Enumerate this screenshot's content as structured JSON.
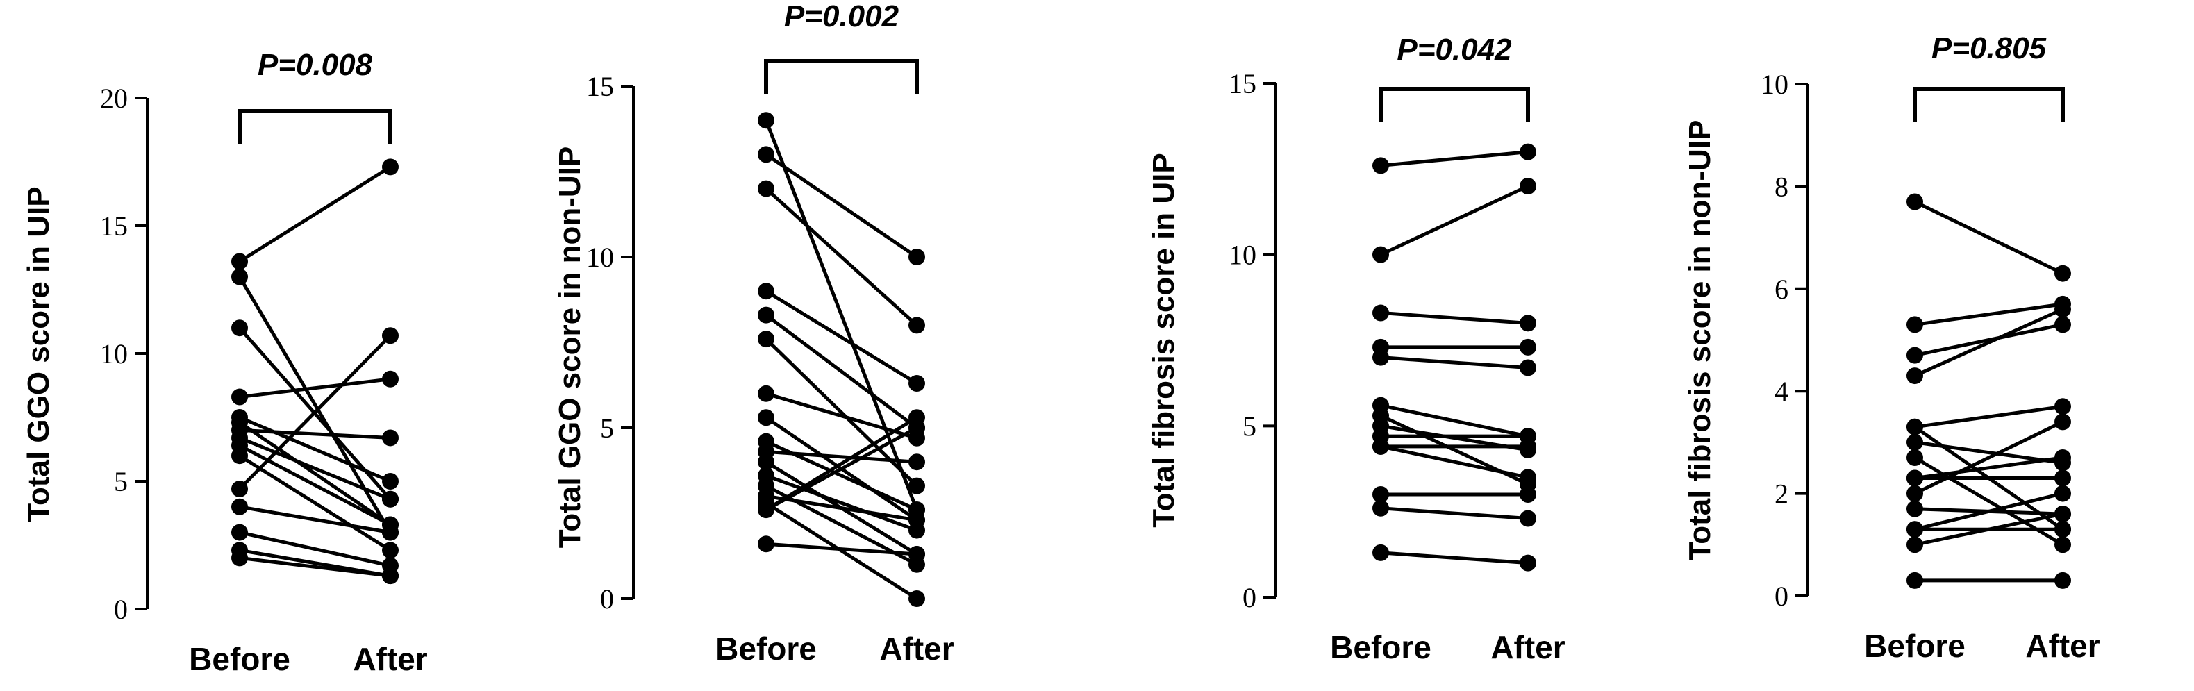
{
  "chart_data": [
    {
      "type": "line",
      "panel": "A",
      "ylabel": "Total GGO score in UIP",
      "ylim": [
        0,
        20
      ],
      "yticks": [
        0,
        5,
        10,
        15,
        20
      ],
      "ytick_labels": [
        "0",
        "5",
        "10",
        "15",
        "20"
      ],
      "categories": [
        "Before",
        "After"
      ],
      "annotation": "P=0.008",
      "pairs": [
        [
          13.6,
          17.3
        ],
        [
          13.0,
          3.0
        ],
        [
          11.0,
          4.3
        ],
        [
          8.3,
          9.0
        ],
        [
          7.5,
          5.0
        ],
        [
          7.3,
          3.3
        ],
        [
          7.0,
          6.7
        ],
        [
          6.7,
          4.3
        ],
        [
          6.4,
          3.3
        ],
        [
          6.0,
          2.3
        ],
        [
          4.7,
          10.7
        ],
        [
          4.0,
          3.0
        ],
        [
          3.0,
          1.7
        ],
        [
          2.3,
          1.3
        ],
        [
          2.0,
          1.3
        ]
      ]
    },
    {
      "type": "line",
      "panel": "B",
      "ylabel": "Total GGO score in non-UIP",
      "ylim": [
        0,
        15
      ],
      "yticks": [
        0,
        5,
        10,
        15
      ],
      "ytick_labels": [
        "0",
        "5",
        "10",
        "15"
      ],
      "categories": [
        "Before",
        "After"
      ],
      "annotation": "P=0.002",
      "pairs": [
        [
          14.0,
          2.6
        ],
        [
          13.0,
          10.0
        ],
        [
          12.0,
          8.0
        ],
        [
          9.0,
          6.3
        ],
        [
          8.3,
          5.0
        ],
        [
          7.6,
          3.3
        ],
        [
          6.0,
          4.7
        ],
        [
          5.3,
          2.3
        ],
        [
          4.6,
          2.6
        ],
        [
          4.3,
          4.0
        ],
        [
          4.0,
          1.3
        ],
        [
          3.6,
          2.0
        ],
        [
          3.3,
          1.0
        ],
        [
          3.0,
          2.3
        ],
        [
          2.8,
          0.0
        ],
        [
          2.6,
          5.0
        ],
        [
          2.6,
          5.3
        ],
        [
          1.6,
          1.3
        ]
      ]
    },
    {
      "type": "line",
      "panel": "C",
      "ylabel": "Total fibrosis score in UIP",
      "ylim": [
        0,
        15
      ],
      "yticks": [
        0,
        5,
        10,
        15
      ],
      "ytick_labels": [
        "0",
        "5",
        "10",
        "15"
      ],
      "categories": [
        "Before",
        "After"
      ],
      "annotation": "P=0.042",
      "pairs": [
        [
          12.6,
          13.0
        ],
        [
          10.0,
          12.0
        ],
        [
          8.3,
          8.0
        ],
        [
          7.3,
          7.3
        ],
        [
          7.0,
          6.7
        ],
        [
          5.6,
          4.7
        ],
        [
          5.3,
          3.3
        ],
        [
          5.0,
          4.3
        ],
        [
          4.7,
          4.7
        ],
        [
          4.4,
          4.4
        ],
        [
          4.4,
          3.5
        ],
        [
          3.0,
          3.0
        ],
        [
          2.6,
          2.3
        ],
        [
          1.3,
          1.0
        ]
      ]
    },
    {
      "type": "line",
      "panel": "D",
      "ylabel": "Total fibrosis score in non-UIP",
      "ylim": [
        0,
        10
      ],
      "yticks": [
        0,
        2,
        4,
        6,
        8,
        10
      ],
      "ytick_labels": [
        "0",
        "2",
        "4",
        "6",
        "8",
        "10"
      ],
      "categories": [
        "Before",
        "After"
      ],
      "annotation": "P=0.805",
      "pairs": [
        [
          7.7,
          6.3
        ],
        [
          5.3,
          5.7
        ],
        [
          4.7,
          5.3
        ],
        [
          4.3,
          5.6
        ],
        [
          3.3,
          3.7
        ],
        [
          3.3,
          1.3
        ],
        [
          3.0,
          2.6
        ],
        [
          2.7,
          1.0
        ],
        [
          2.3,
          2.7
        ],
        [
          2.3,
          2.3
        ],
        [
          2.0,
          3.4
        ],
        [
          1.7,
          1.6
        ],
        [
          1.3,
          2.0
        ],
        [
          1.3,
          1.3
        ],
        [
          1.0,
          1.6
        ],
        [
          0.3,
          0.3
        ]
      ]
    }
  ]
}
